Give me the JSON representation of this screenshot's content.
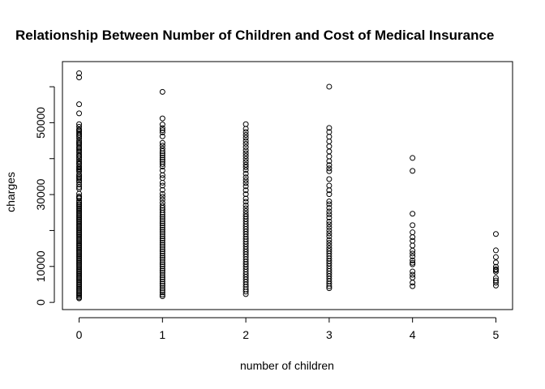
{
  "chart_data": {
    "type": "scatter",
    "title": "Relationship Between Number of Children and Cost of Medical Insurance",
    "xlabel": "number of children",
    "ylabel": "charges",
    "xlim": [
      -0.2,
      5.2
    ],
    "ylim": [
      -2000,
      67000
    ],
    "xticks": [
      0,
      1,
      2,
      3,
      4,
      5
    ],
    "yticks": [
      0,
      10000,
      30000,
      50000
    ],
    "grid": false,
    "series": [
      {
        "x": 0,
        "y": [
          63770,
          62593,
          55135,
          52591,
          49577,
          48885,
          48173,
          47896,
          47496,
          47055,
          46599,
          46200,
          45702,
          45008,
          44585,
          44202,
          43813,
          43254,
          42983,
          42560,
          42112,
          41661,
          41097,
          40720,
          40273,
          39836,
          39241,
          38746,
          38415,
          37829,
          37484,
          37133,
          36837,
          36398,
          35585,
          35160,
          34779,
          34439,
          33907,
          33475,
          32787,
          32108,
          31620,
          30259,
          29523,
          29186,
          28950,
          28287,
          27808,
          27375,
          27000,
          26600,
          26200,
          25800,
          25400,
          25000,
          24600,
          24200,
          23800,
          23400,
          23000,
          22600,
          22200,
          21800,
          21400,
          21000,
          20600,
          20200,
          19800,
          19400,
          19000,
          18600,
          18200,
          17800,
          17400,
          17000,
          16600,
          16200,
          15800,
          15400,
          15000,
          14600,
          14200,
          13800,
          13400,
          13000,
          12600,
          12200,
          11800,
          11400,
          11000,
          10600,
          10200,
          9800,
          9400,
          9000,
          8600,
          8200,
          7800,
          7400,
          7000,
          6600,
          6200,
          5800,
          5400,
          5000,
          4600,
          4200,
          3800,
          3400,
          3000,
          2600,
          2200,
          1800,
          1400,
          1122
        ]
      },
      {
        "x": 1,
        "y": [
          58571,
          51195,
          49500,
          48517,
          47900,
          47300,
          46200,
          44400,
          43600,
          42800,
          42100,
          41500,
          40900,
          40300,
          39700,
          39100,
          38500,
          37800,
          36700,
          35400,
          34600,
          33300,
          32500,
          31300,
          30200,
          29400,
          28600,
          27700,
          26900,
          26300,
          25700,
          25000,
          24400,
          23800,
          23200,
          22600,
          22000,
          21400,
          20800,
          20200,
          19600,
          19000,
          18400,
          17800,
          17200,
          16600,
          16000,
          15400,
          14800,
          14200,
          13600,
          13000,
          12400,
          11800,
          11200,
          10600,
          10000,
          9400,
          8800,
          8200,
          7600,
          7000,
          6400,
          5800,
          5200,
          4600,
          4000,
          3400,
          2800,
          2200,
          1712
        ]
      },
      {
        "x": 2,
        "y": [
          49577,
          48300,
          47400,
          46600,
          45800,
          44900,
          44100,
          43200,
          42300,
          41500,
          40700,
          39900,
          39100,
          38300,
          37600,
          36800,
          35800,
          34800,
          34000,
          33200,
          32300,
          31200,
          30100,
          28900,
          28000,
          27000,
          26200,
          25400,
          24600,
          23900,
          23200,
          22500,
          21800,
          21100,
          20400,
          19700,
          19000,
          18300,
          17600,
          16900,
          16200,
          15500,
          14800,
          14100,
          13400,
          12700,
          12000,
          11300,
          10600,
          9900,
          9200,
          8500,
          7800,
          7100,
          6400,
          5700,
          5000,
          4300,
          3600,
          3000,
          2304
        ]
      },
      {
        "x": 3,
        "y": [
          60021,
          48549,
          47400,
          46100,
          44800,
          43400,
          42000,
          40600,
          39300,
          38200,
          37300,
          36500,
          34300,
          32500,
          31200,
          30100,
          28100,
          27300,
          26300,
          25300,
          24500,
          23600,
          22500,
          21700,
          20900,
          20000,
          19200,
          18400,
          17400,
          16600,
          15800,
          15000,
          14300,
          13600,
          12900,
          12200,
          11500,
          10800,
          10100,
          9400,
          8700,
          8000,
          7300,
          6600,
          5900,
          5200,
          4500,
          3943
        ]
      },
      {
        "x": 4,
        "y": [
          40182,
          36580,
          24671,
          21472,
          19496,
          18157,
          17129,
          15817,
          14394,
          13600,
          12800,
          11700,
          11033,
          10600,
          8600,
          7700,
          6900,
          5500,
          4504
        ]
      },
      {
        "x": 5,
        "y": [
          19023,
          14478,
          12592,
          11094,
          9910,
          9249,
          8965,
          8516,
          6800,
          6100,
          5500,
          4687
        ]
      }
    ]
  }
}
